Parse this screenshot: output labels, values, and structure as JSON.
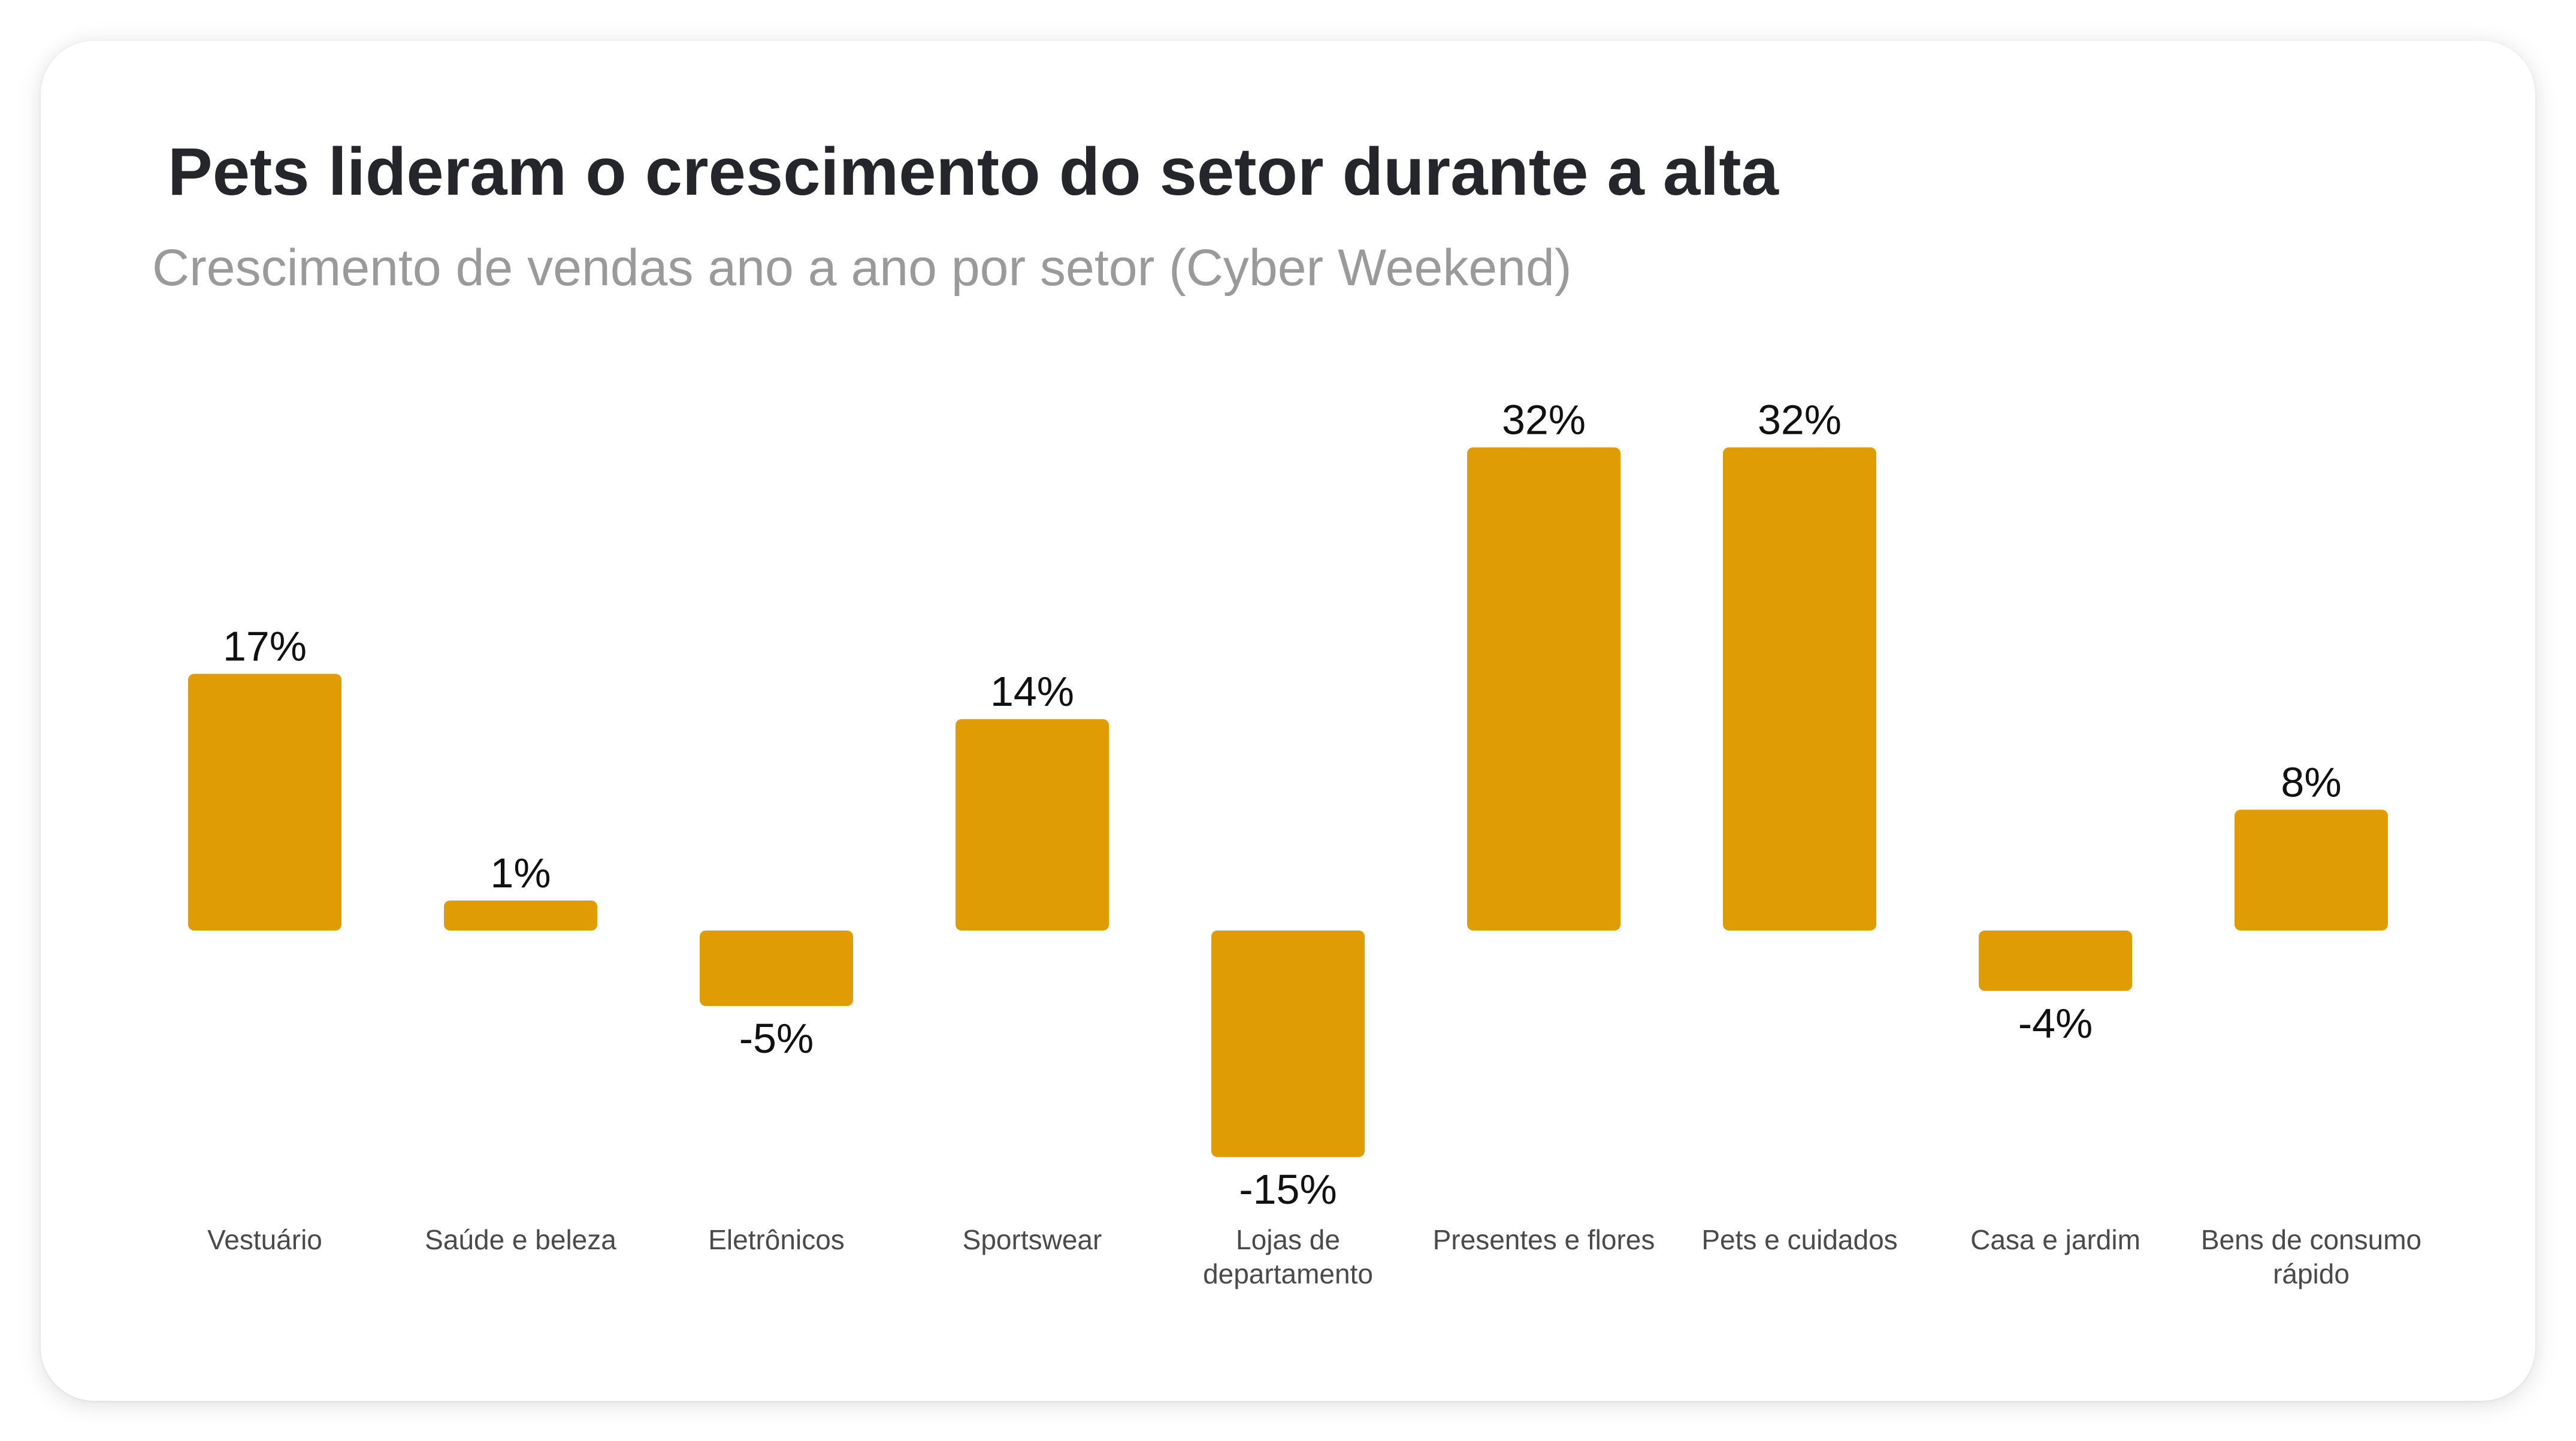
{
  "header": {
    "title": "Pets lideram o crescimento do setor durante a alta",
    "subtitle": "Crescimento de vendas ano a ano por setor (Cyber Weekend)"
  },
  "colors": {
    "bar": "#E09C05",
    "title": "#24262B",
    "subtitle": "#9A9A9A"
  },
  "chart_data": {
    "type": "bar",
    "title": "Pets lideram o crescimento do setor durante a alta",
    "subtitle": "Crescimento de vendas ano a ano por setor (Cyber Weekend)",
    "xlabel": "",
    "ylabel": "",
    "grid": false,
    "legend": "none",
    "ylim": [
      -15,
      32
    ],
    "categories": [
      "Vestuário",
      "Saúde e beleza",
      "Eletrônicos",
      "Sportswear",
      "Lojas de departamento",
      "Presentes e flores",
      "Pets e cuidados",
      "Casa e jardim",
      "Bens de consumo rápido"
    ],
    "category_lines": [
      [
        "Vestuário"
      ],
      [
        "Saúde e beleza"
      ],
      [
        "Eletrônicos"
      ],
      [
        "Sportswear"
      ],
      [
        "Lojas de",
        "departamento"
      ],
      [
        "Presentes e flores"
      ],
      [
        "Pets e cuidados"
      ],
      [
        "Casa e jardim"
      ],
      [
        "Bens de consumo",
        "rápido"
      ]
    ],
    "values": [
      17,
      1,
      -5,
      14,
      -15,
      32,
      32,
      -4,
      8
    ],
    "value_labels": [
      "17%",
      "1%",
      "-5%",
      "14%",
      "-15%",
      "32%",
      "32%",
      "-4%",
      "8%"
    ]
  }
}
